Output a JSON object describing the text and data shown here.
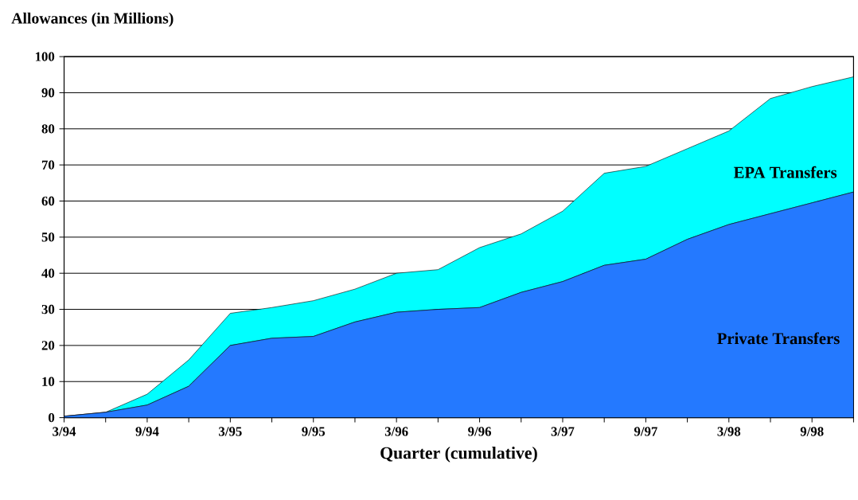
{
  "chart_data": {
    "type": "area",
    "stacked": true,
    "ylabel": "Allowances (in Millions)",
    "xlabel": "Quarter (cumulative)",
    "categories": [
      "3/94",
      null,
      "9/94",
      null,
      "3/95",
      null,
      "9/95",
      null,
      "3/96",
      null,
      "9/96",
      null,
      "3/97",
      null,
      "9/97",
      null,
      "3/98",
      null,
      "9/98",
      null
    ],
    "series": [
      {
        "name": "Private Transfers",
        "color": "#2479ff",
        "values": [
          0.4,
          1.5,
          3.5,
          8.7,
          20,
          22,
          22.5,
          26.5,
          29.2,
          30,
          30.5,
          34.7,
          37.7,
          42.2,
          43.9,
          49.4,
          53.5,
          56.5,
          59.5,
          62.5
        ]
      },
      {
        "name": "EPA  Transfers",
        "color": "#00ffff",
        "values": [
          0,
          0,
          3,
          7.3,
          8.9,
          8.5,
          9.9,
          9.1,
          10.8,
          11,
          16.6,
          16.2,
          19.5,
          25.5,
          25.7,
          25.1,
          25.9,
          31.9,
          32.2,
          31.9
        ]
      }
    ],
    "ylim": [
      0,
      100
    ],
    "yticks": [
      0,
      10,
      20,
      30,
      40,
      50,
      60,
      70,
      80,
      90,
      100
    ],
    "grid": "y"
  }
}
